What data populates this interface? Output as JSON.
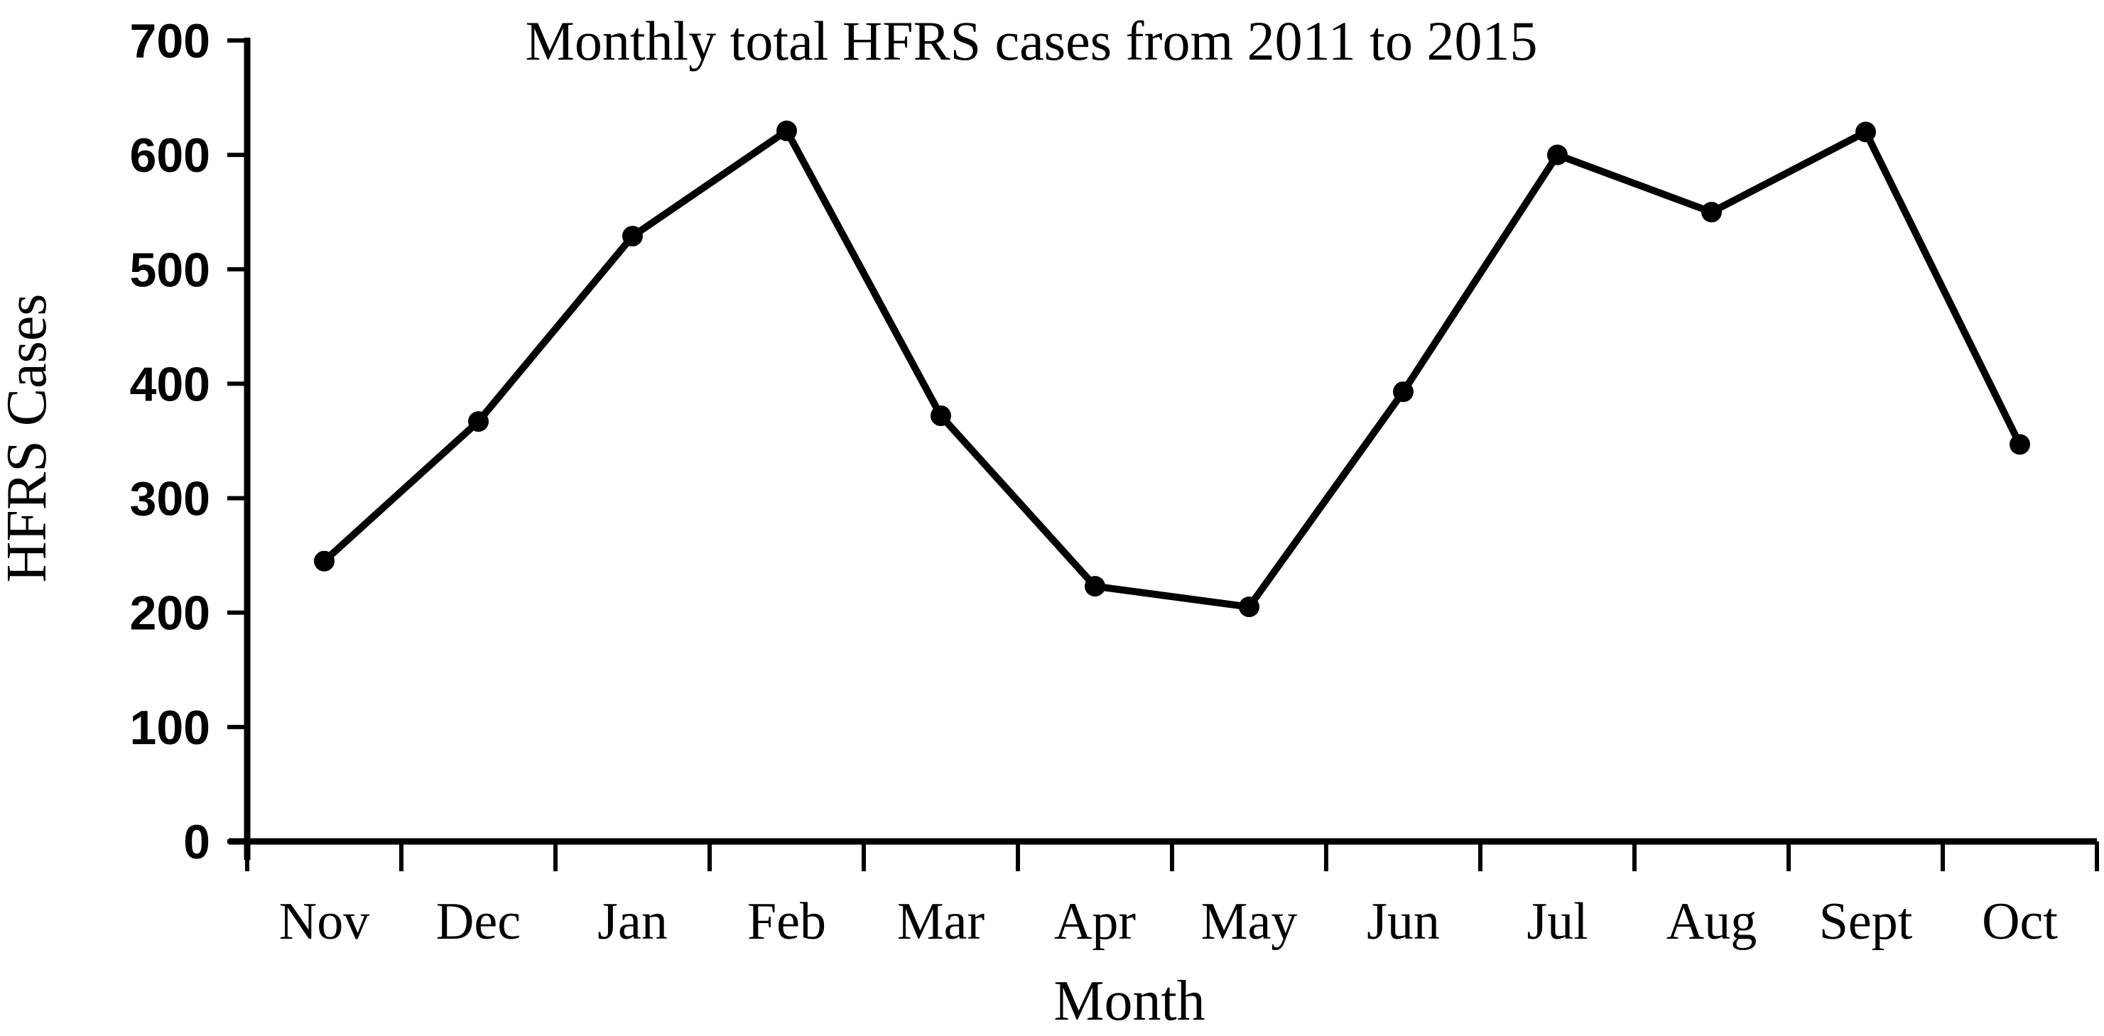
{
  "figure": {
    "background": "#ffffff",
    "text_color": "#000000"
  },
  "chart_data": {
    "type": "line",
    "title": "Monthly total HFRS cases from 2011 to 2015",
    "xlabel": "Month",
    "ylabel": "HFRS Cases",
    "categories": [
      "Nov",
      "Dec",
      "Jan",
      "Feb",
      "Mar",
      "Apr",
      "May",
      "Jun",
      "Jul",
      "Aug",
      "Sept",
      "Oct"
    ],
    "series": [
      {
        "name": "Monthly total HFRS cases",
        "values": [
          245,
          367,
          529,
          621,
          372,
          223,
          205,
          393,
          600,
          550,
          620,
          347
        ]
      }
    ],
    "ylim": [
      0,
      700
    ],
    "yticks": [
      0,
      100,
      200,
      300,
      400,
      500,
      600,
      700
    ],
    "grid": false,
    "legend_position": "none",
    "line_color": "#000000",
    "marker": "circle",
    "marker_color": "#000000",
    "axis_color": "#000000"
  }
}
